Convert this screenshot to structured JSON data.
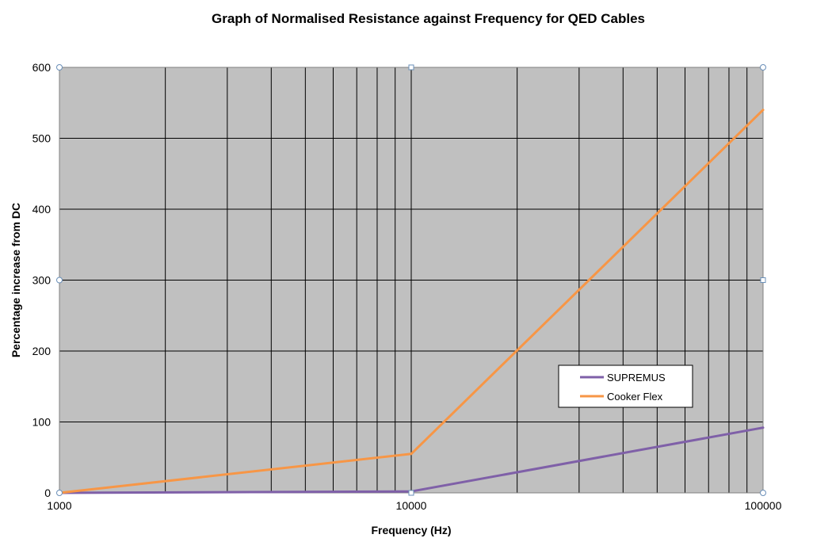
{
  "chart_data": {
    "type": "line",
    "title": "Graph of Normalised Resistance against Frequency for QED Cables",
    "xlabel": "Frequency (Hz)",
    "ylabel": "Percentage increase from DC",
    "x_scale": "log",
    "xlim": [
      1000,
      100000
    ],
    "ylim": [
      0,
      600
    ],
    "x_tick_labels": [
      "1000",
      "10000",
      "100000"
    ],
    "y_tick_labels": [
      "0",
      "100",
      "200",
      "300",
      "400",
      "500",
      "600"
    ],
    "grid": true,
    "legend_position": "right-center",
    "background_color": "#c0c0c0",
    "x": [
      1000,
      10000,
      100000
    ],
    "series": [
      {
        "name": "SUPREMUS",
        "color": "#7f60a8",
        "values": [
          0,
          2,
          92
        ]
      },
      {
        "name": "Cooker Flex",
        "color": "#f79646",
        "values": [
          0,
          55,
          540
        ]
      }
    ]
  }
}
